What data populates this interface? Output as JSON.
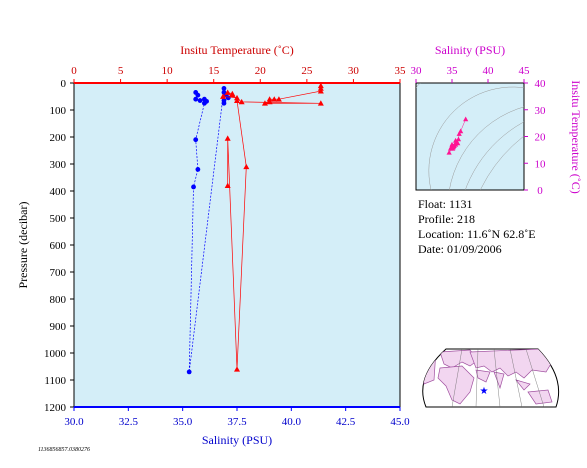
{
  "chart_data": [
    {
      "type": "scatter",
      "id": "profile",
      "xlabel_bottom": "Salinity (PSU)",
      "xlabel_top": "Insitu Temperature (˚C)",
      "ylabel": "Pressure (decibar)",
      "y_inverted": true,
      "ylim": [
        0,
        1200
      ],
      "salinity_lim": [
        30.0,
        45.0
      ],
      "temperature_lim": [
        0,
        35
      ],
      "y_ticks": [
        "0",
        "100",
        "200",
        "300",
        "400",
        "500",
        "600",
        "700",
        "800",
        "900",
        "1000",
        "1100",
        "1200"
      ],
      "salinity_ticks": [
        "30.0",
        "32.5",
        "35.0",
        "37.5",
        "40.0",
        "42.5",
        "45.0"
      ],
      "temperature_ticks": [
        "0",
        "5",
        "10",
        "15",
        "20",
        "25",
        "30",
        "35"
      ],
      "colors": {
        "salinity": "#0000ff",
        "temperature": "#ff0000",
        "background": "#d4eef8",
        "axis_top": "#ff0000",
        "axis_bottom": "#0000ff"
      },
      "series": [
        {
          "name": "Salinity (PSU)",
          "axis": "bottom",
          "marker": "circle",
          "color": "#0000ff",
          "points": [
            [
              35.6,
              35
            ],
            [
              35.7,
              45
            ],
            [
              35.6,
              60
            ],
            [
              35.8,
              65
            ],
            [
              36.0,
              60
            ],
            [
              36.1,
              68
            ],
            [
              36.0,
              75
            ],
            [
              35.6,
              210
            ],
            [
              35.7,
              320
            ],
            [
              35.5,
              385
            ],
            [
              35.3,
              1070
            ],
            [
              36.9,
              20
            ],
            [
              36.9,
              35
            ],
            [
              37.0,
              45
            ],
            [
              37.1,
              55
            ],
            [
              36.9,
              65
            ],
            [
              36.9,
              75
            ]
          ]
        },
        {
          "name": "Insitu Temperature (˚C)",
          "axis": "top",
          "marker": "triangle",
          "color": "#ff0000",
          "points": [
            [
              26.5,
              10
            ],
            [
              26.5,
              20
            ],
            [
              26.5,
              30
            ],
            [
              22.0,
              60
            ],
            [
              21.5,
              60
            ],
            [
              21.0,
              60
            ],
            [
              21.0,
              70
            ],
            [
              20.5,
              75
            ],
            [
              26.5,
              75
            ],
            [
              18.0,
              70
            ],
            [
              17.0,
              45
            ],
            [
              17.0,
              40
            ],
            [
              16.5,
              35
            ],
            [
              16.0,
              50
            ],
            [
              17.5,
              55
            ],
            [
              17.5,
              65
            ],
            [
              18.5,
              310
            ],
            [
              17.5,
              1060
            ],
            [
              16.5,
              205
            ],
            [
              16.5,
              380
            ]
          ]
        }
      ]
    },
    {
      "type": "scatter",
      "id": "ts-diagram",
      "xlabel": "Salinity (PSU)",
      "ylabel": "Insitu Temperature (˚C)",
      "xlim": [
        30,
        45
      ],
      "ylim": [
        0,
        40
      ],
      "x_ticks": [
        "30",
        "35",
        "40",
        "45"
      ],
      "y_ticks": [
        "0",
        "10",
        "20",
        "30",
        "40"
      ],
      "colors": {
        "points": "#ff1493",
        "axes": "#cc00cc",
        "isopycnals": "#9a9a9a"
      },
      "points": [
        [
          36.9,
          26.5
        ],
        [
          36.2,
          22.0
        ],
        [
          36.0,
          21.0
        ],
        [
          35.9,
          19.0
        ],
        [
          35.8,
          17.5
        ],
        [
          35.6,
          18.0
        ],
        [
          35.5,
          17.0
        ],
        [
          35.3,
          16.5
        ],
        [
          35.2,
          16.0
        ],
        [
          35.1,
          15.5
        ],
        [
          35.0,
          17.0
        ],
        [
          34.9,
          16.0
        ],
        [
          34.6,
          14.0
        ],
        [
          34.8,
          15.5
        ],
        [
          35.5,
          18.5
        ]
      ]
    }
  ],
  "info": {
    "float": "Float:  1131",
    "profile": "Profile:  218",
    "location": "Location:  11.6˚N  62.8˚E",
    "date": "Date:  01/09/2006"
  },
  "map": {
    "marker": "★",
    "colors": {
      "ocean": "#ffffff",
      "land": "#f2d6f0",
      "land_edge": "#a050a0",
      "marker": "#0000ff"
    }
  },
  "footer_id": "1136856857.0380276"
}
